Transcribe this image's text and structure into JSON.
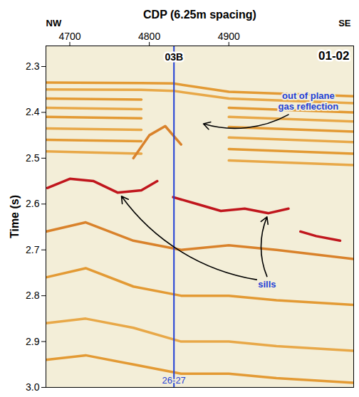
{
  "chart_data": {
    "type": "seismic_section",
    "title": "01-02",
    "x_label": "CDP (6.25m spacing)",
    "y_label": "Time (s)",
    "x_end_labels": [
      "NW",
      "SE"
    ],
    "xlim": [
      4670,
      5057
    ],
    "xticks": [
      4700,
      4800,
      4900
    ],
    "ylim": [
      2.255,
      3.0
    ],
    "yticks": [
      2.3,
      2.4,
      2.5,
      2.6,
      2.7,
      2.8,
      2.9,
      {
        "value": 3,
        "label": "3.0"
      }
    ],
    "well": {
      "x": 4831,
      "top_label": "03B",
      "bottom_label": "26-27",
      "color": "#1f3fd6"
    },
    "reflectors": [
      {
        "color": "#e39a34",
        "x": [
          4670,
          4790,
          4830,
          4900,
          5057
        ],
        "y": [
          2.335,
          2.336,
          2.337,
          2.355,
          2.365
        ]
      },
      {
        "color": "#e8a848",
        "x": [
          4670,
          4790,
          4830,
          4900,
          5057
        ],
        "y": [
          2.35,
          2.351,
          2.353,
          2.37,
          2.38
        ]
      },
      {
        "color": "#e39a34",
        "x": [
          4670,
          4790,
          4830,
          4900,
          5057
        ],
        "y": [
          2.37,
          2.372,
          null,
          2.39,
          2.4
        ]
      },
      {
        "color": "#e8a848",
        "x": [
          4670,
          4790,
          4830,
          4900,
          5057
        ],
        "y": [
          2.39,
          2.393,
          null,
          2.41,
          2.42
        ]
      },
      {
        "color": "#e39a34",
        "x": [
          4670,
          4790,
          4830,
          4900,
          5057
        ],
        "y": [
          2.41,
          2.413,
          null,
          2.432,
          2.442
        ]
      },
      {
        "color": "#e8a848",
        "x": [
          4670,
          4790,
          4830,
          4900,
          5057
        ],
        "y": [
          2.435,
          2.438,
          null,
          2.455,
          2.465
        ]
      },
      {
        "color": "#e39a34",
        "x": [
          4670,
          4790,
          4830,
          4900,
          5057
        ],
        "y": [
          2.46,
          2.463,
          null,
          2.48,
          2.49
        ]
      },
      {
        "color": "#e8a848",
        "x": [
          4670,
          4790,
          4830,
          4900,
          5057
        ],
        "y": [
          2.485,
          2.49,
          null,
          2.505,
          2.515
        ]
      },
      {
        "color": "#d9822b",
        "x": [
          4780,
          4800,
          4820,
          4840
        ],
        "y": [
          2.5,
          2.45,
          2.43,
          2.47
        ]
      },
      {
        "color": "#c0161d",
        "x": [
          4672,
          4700,
          4730,
          4760,
          4790,
          4810
        ],
        "y": [
          2.565,
          2.545,
          2.55,
          2.575,
          2.57,
          2.55
        ]
      },
      {
        "color": "#c0161d",
        "x": [
          4830,
          4860,
          4890,
          4920,
          4950,
          4975
        ],
        "y": [
          2.585,
          2.6,
          2.615,
          2.61,
          2.62,
          2.61
        ]
      },
      {
        "color": "#c0161d",
        "x": [
          4990,
          5010,
          5040
        ],
        "y": [
          2.66,
          2.67,
          2.68
        ]
      },
      {
        "color": "#d9822b",
        "x": [
          4670,
          4720,
          4780,
          4840,
          4900,
          4960,
          5057
        ],
        "y": [
          2.66,
          2.64,
          2.68,
          2.7,
          2.69,
          2.7,
          2.72
        ]
      },
      {
        "color": "#e39a34",
        "x": [
          4670,
          4720,
          4780,
          4840,
          4900,
          4960,
          5057
        ],
        "y": [
          2.76,
          2.74,
          2.78,
          2.8,
          2.8,
          2.81,
          2.82
        ]
      },
      {
        "color": "#e8a848",
        "x": [
          4670,
          4720,
          4780,
          4840,
          4900,
          4960,
          5057
        ],
        "y": [
          2.86,
          2.85,
          2.87,
          2.9,
          2.9,
          2.91,
          2.92
        ]
      },
      {
        "color": "#e39a34",
        "x": [
          4670,
          4720,
          4780,
          4840,
          4900,
          4960,
          5057
        ],
        "y": [
          2.94,
          2.93,
          2.95,
          2.97,
          2.97,
          2.98,
          2.99
        ]
      }
    ],
    "annotations": [
      {
        "text": "out of plane gas reflection",
        "x": 5000,
        "y": 2.375,
        "color": "#1f3fd6",
        "arrows": [
          {
            "x1": 4975,
            "y1": 2.405,
            "x2": 4868,
            "y2": 2.425
          }
        ]
      },
      {
        "text": "sills",
        "x": 4948,
        "y": 2.775,
        "color": "#1f3fd6",
        "arrows": [
          {
            "x1": 4948,
            "y1": 2.758,
            "x2": 4948,
            "y2": 2.628
          },
          {
            "x1": 4935,
            "y1": 2.765,
            "x2": 4765,
            "y2": 2.583
          }
        ]
      }
    ]
  }
}
